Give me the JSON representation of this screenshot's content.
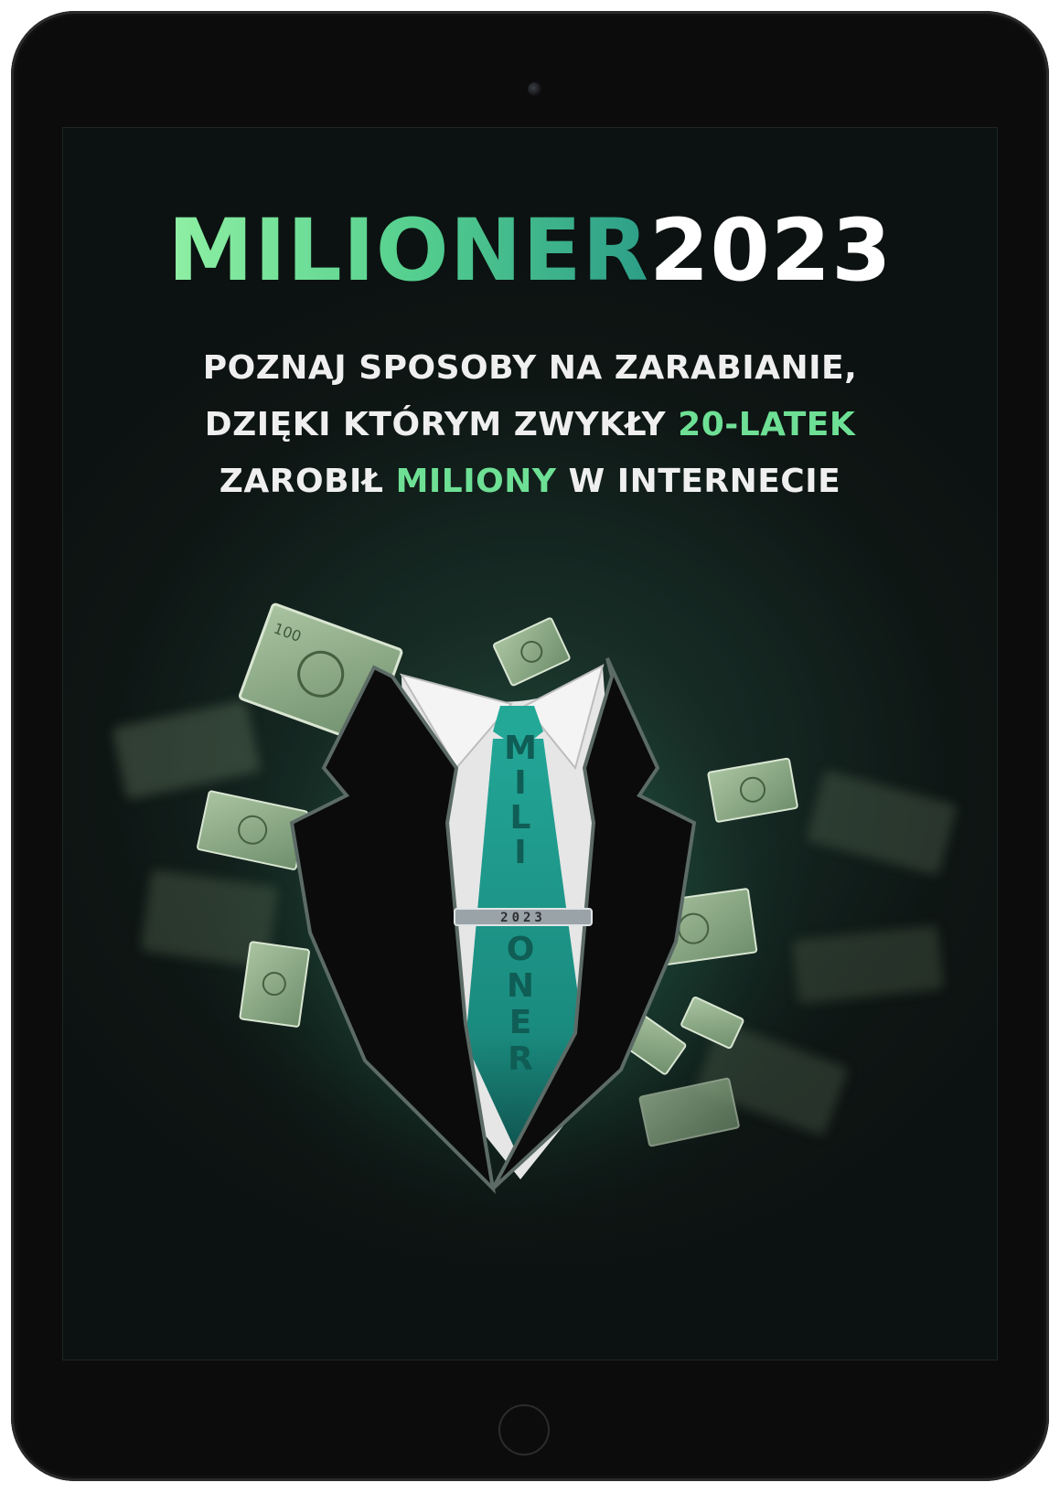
{
  "cover": {
    "title_green": "MILIONER",
    "title_white": "2023",
    "subtitle": {
      "line1": "POZNAJ SPOSOBY NA ZARABIANIE,",
      "line2_pre": "DZIĘKI KTÓRYM ZWYKŁY ",
      "line2_highlight": "20-LATEK",
      "line3_pre": "ZAROBIŁ ",
      "line3_highlight": "MILIONY",
      "line3_post": " W INTERNECIE"
    },
    "tie_text": [
      "M",
      "I",
      "L",
      "I",
      "O",
      "N",
      "E",
      "R"
    ],
    "tie_clip_text": "2023"
  },
  "colors": {
    "accent_green": "#6ee095",
    "tie_teal": "#1f9c8c",
    "bill_green": "#7f9f7d",
    "device_black": "#0c0c0c"
  },
  "icons": {
    "camera": "front-camera-icon",
    "home": "home-button-icon"
  }
}
